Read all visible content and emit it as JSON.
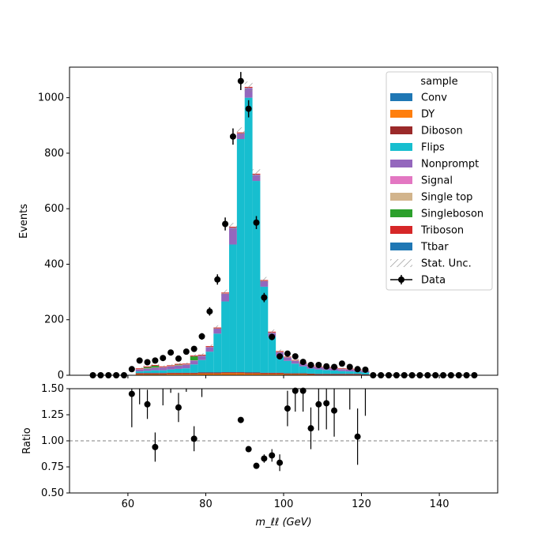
{
  "chart_data": [
    {
      "type": "bar",
      "subtype": "stacked-histogram",
      "xlabel": "",
      "ylabel": "Events",
      "xlim": [
        45,
        155
      ],
      "ylim": [
        0,
        1110
      ],
      "yticks": [
        0,
        200,
        400,
        600,
        800,
        1000
      ],
      "xticks": [
        60,
        80,
        100,
        120,
        140
      ],
      "bin_width": 2,
      "bin_centers": [
        51,
        53,
        55,
        57,
        59,
        61,
        63,
        65,
        67,
        69,
        71,
        73,
        75,
        77,
        79,
        81,
        83,
        85,
        87,
        89,
        91,
        93,
        95,
        97,
        99,
        101,
        103,
        105,
        107,
        109,
        111,
        113,
        115,
        117,
        119,
        121,
        123,
        125,
        127,
        129,
        131,
        133,
        135,
        137,
        139,
        141,
        143,
        145,
        147,
        149
      ],
      "series": [
        {
          "name": "Conv",
          "color": "#1f77b4",
          "values": [
            0,
            0,
            0,
            0,
            0,
            0,
            1,
            1,
            1,
            1,
            1,
            1,
            1,
            1,
            1,
            1,
            1,
            1,
            1,
            1,
            1,
            1,
            1,
            1,
            1,
            1,
            1,
            1,
            0,
            0,
            0,
            0,
            0,
            0,
            0,
            0,
            0,
            0,
            0,
            0,
            0,
            0,
            0,
            0,
            0,
            0,
            0,
            0,
            0,
            0
          ]
        },
        {
          "name": "DY",
          "color": "#ff7f0e",
          "values": [
            0,
            0,
            0,
            0,
            0,
            0,
            3,
            3,
            3,
            3,
            4,
            4,
            4,
            4,
            5,
            5,
            5,
            6,
            6,
            6,
            5,
            5,
            4,
            4,
            4,
            3,
            3,
            3,
            3,
            2,
            2,
            2,
            2,
            2,
            2,
            1,
            0,
            0,
            0,
            0,
            0,
            0,
            0,
            0,
            0,
            0,
            0,
            0,
            0,
            0
          ]
        },
        {
          "name": "Diboson",
          "color": "#9b2a2a",
          "values": [
            0,
            0,
            0,
            0,
            0,
            0,
            4,
            4,
            4,
            4,
            4,
            4,
            4,
            4,
            4,
            4,
            4,
            4,
            4,
            4,
            4,
            4,
            4,
            4,
            4,
            3,
            3,
            3,
            3,
            3,
            3,
            3,
            3,
            3,
            3,
            2,
            0,
            0,
            0,
            0,
            0,
            0,
            0,
            0,
            0,
            0,
            0,
            0,
            0,
            0
          ]
        },
        {
          "name": "Flips",
          "color": "#17becf",
          "values": [
            0,
            0,
            0,
            0,
            0,
            0,
            6,
            8,
            10,
            10,
            12,
            14,
            16,
            30,
            45,
            75,
            140,
            255,
            460,
            840,
            990,
            690,
            310,
            130,
            60,
            45,
            35,
            25,
            18,
            16,
            14,
            12,
            10,
            9,
            8,
            7,
            0,
            0,
            0,
            0,
            0,
            0,
            0,
            0,
            0,
            0,
            0,
            0,
            0,
            0
          ]
        },
        {
          "name": "Nonprompt",
          "color": "#9467bd",
          "values": [
            0,
            0,
            0,
            0,
            0,
            0,
            7,
            8,
            9,
            10,
            11,
            12,
            13,
            14,
            15,
            16,
            18,
            28,
            60,
            20,
            35,
            22,
            20,
            14,
            14,
            12,
            10,
            10,
            9,
            8,
            8,
            8,
            7,
            7,
            6,
            5,
            0,
            0,
            0,
            0,
            0,
            0,
            0,
            0,
            0,
            0,
            0,
            0,
            0,
            0
          ]
        },
        {
          "name": "Signal",
          "color": "#e377c2",
          "values": [
            0,
            0,
            0,
            0,
            0,
            0,
            0,
            0,
            0,
            0,
            0,
            0,
            0,
            0,
            0,
            0,
            0,
            0,
            0,
            0,
            0,
            0,
            0,
            0,
            0,
            0,
            0,
            0,
            0,
            0,
            0,
            0,
            0,
            0,
            0,
            0,
            0,
            0,
            0,
            0,
            0,
            0,
            0,
            0,
            0,
            0,
            0,
            0,
            0,
            0
          ]
        },
        {
          "name": "Single top",
          "color": "#d2b48c",
          "values": [
            0,
            0,
            0,
            0,
            0,
            0,
            1,
            1,
            1,
            1,
            1,
            1,
            1,
            1,
            1,
            1,
            1,
            1,
            1,
            1,
            1,
            1,
            1,
            1,
            1,
            1,
            1,
            1,
            1,
            1,
            1,
            1,
            1,
            1,
            1,
            1,
            0,
            0,
            0,
            0,
            0,
            0,
            0,
            0,
            0,
            0,
            0,
            0,
            0,
            0
          ]
        },
        {
          "name": "Singleboson",
          "color": "#2ca02c",
          "values": [
            0,
            0,
            0,
            0,
            0,
            0,
            0,
            4,
            6,
            0,
            0,
            2,
            0,
            14,
            0,
            0,
            0,
            0,
            0,
            0,
            0,
            0,
            0,
            0,
            0,
            0,
            0,
            0,
            0,
            0,
            0,
            0,
            0,
            0,
            0,
            0,
            0,
            0,
            0,
            0,
            0,
            0,
            0,
            0,
            0,
            0,
            0,
            0,
            0,
            0
          ]
        },
        {
          "name": "Triboson",
          "color": "#d62728",
          "values": [
            0,
            0,
            0,
            0,
            0,
            0,
            3,
            3,
            3,
            3,
            3,
            3,
            3,
            3,
            3,
            3,
            3,
            3,
            3,
            3,
            3,
            3,
            3,
            3,
            3,
            2,
            2,
            2,
            2,
            2,
            2,
            2,
            2,
            2,
            2,
            1,
            0,
            0,
            0,
            0,
            0,
            0,
            0,
            0,
            0,
            0,
            0,
            0,
            0,
            0
          ]
        },
        {
          "name": "Ttbar",
          "color": "#1f77b4",
          "values": [
            0,
            0,
            0,
            0,
            0,
            0,
            0,
            0,
            0,
            0,
            0,
            0,
            0,
            0,
            0,
            0,
            0,
            0,
            0,
            0,
            0,
            0,
            0,
            0,
            0,
            0,
            0,
            0,
            0,
            0,
            0,
            0,
            0,
            0,
            0,
            0,
            0,
            0,
            0,
            0,
            0,
            0,
            0,
            0,
            0,
            0,
            0,
            0,
            0,
            0
          ]
        }
      ],
      "stat_unc": {
        "name": "Stat. Unc.",
        "color": "#888888",
        "hatch": "////"
      },
      "data_series": {
        "name": "Data",
        "color": "#000000",
        "values": [
          0,
          0,
          0,
          0,
          0,
          22,
          53,
          47,
          53,
          62,
          82,
          60,
          85,
          95,
          140,
          230,
          345,
          545,
          860,
          1060,
          960,
          550,
          280,
          138,
          68,
          78,
          68,
          48,
          37,
          37,
          32,
          30,
          42,
          30,
          22,
          20,
          0,
          0,
          0,
          0,
          0,
          0,
          0,
          0,
          0,
          0,
          0,
          0,
          0,
          0
        ]
      },
      "legend": {
        "title": "sample",
        "placement": "top-right"
      }
    },
    {
      "type": "scatter",
      "subtype": "ratio-panel",
      "xlabel": "m_ℓℓ (GeV)",
      "ylabel": "Ratio",
      "xlim": [
        45,
        155
      ],
      "ylim": [
        0.5,
        1.5
      ],
      "yticks": [
        "0.50",
        "0.75",
        "1.00",
        "1.25",
        "1.50"
      ],
      "xticks": [
        60,
        80,
        100,
        120,
        140
      ],
      "reference_line": 1.0,
      "points": [
        {
          "x": 61,
          "y": 1.45,
          "err": 0.32
        },
        {
          "x": 65,
          "y": 1.35,
          "err": 0.14
        },
        {
          "x": 67,
          "y": 0.94,
          "err": 0.14
        },
        {
          "x": 73,
          "y": 1.32,
          "err": 0.14
        },
        {
          "x": 77,
          "y": 1.02,
          "err": 0.12
        },
        {
          "x": 89,
          "y": 1.2,
          "err": 0.02
        },
        {
          "x": 91,
          "y": 0.92,
          "err": 0.02
        },
        {
          "x": 93,
          "y": 0.76,
          "err": 0.02
        },
        {
          "x": 95,
          "y": 0.83,
          "err": 0.04
        },
        {
          "x": 97,
          "y": 0.86,
          "err": 0.06
        },
        {
          "x": 99,
          "y": 0.79,
          "err": 0.08
        },
        {
          "x": 101,
          "y": 1.31,
          "err": 0.17
        },
        {
          "x": 103,
          "y": 1.48,
          "err": 0.2
        },
        {
          "x": 105,
          "y": 1.48,
          "err": 0.2
        },
        {
          "x": 107,
          "y": 1.12,
          "err": 0.2
        },
        {
          "x": 109,
          "y": 1.35,
          "err": 0.25
        },
        {
          "x": 111,
          "y": 1.36,
          "err": 0.25
        },
        {
          "x": 113,
          "y": 1.29,
          "err": 0.25
        },
        {
          "x": 119,
          "y": 1.04,
          "err": 0.27
        }
      ],
      "offscale_errorbars": [
        {
          "x": 63,
          "lo": 1.35
        },
        {
          "x": 69,
          "lo": 1.34
        },
        {
          "x": 71,
          "lo": 1.46
        },
        {
          "x": 75,
          "lo": 1.47
        },
        {
          "x": 79,
          "lo": 1.42
        },
        {
          "x": 117,
          "lo": 1.3
        },
        {
          "x": 121,
          "lo": 1.24
        }
      ]
    }
  ]
}
